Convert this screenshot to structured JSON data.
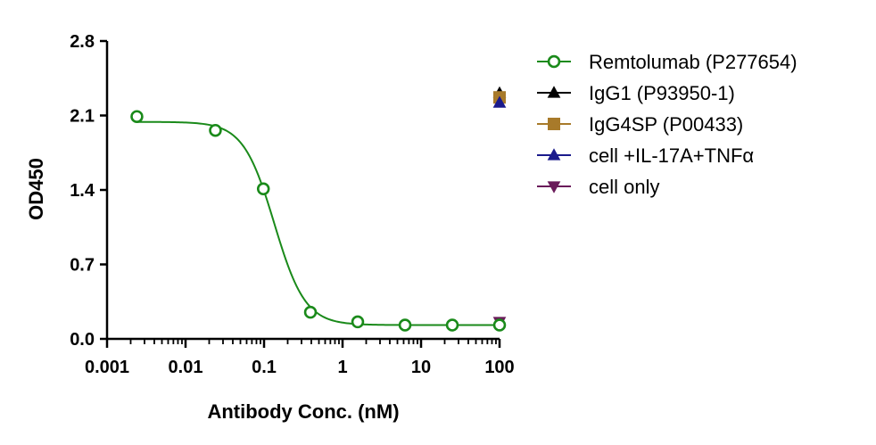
{
  "chart_data": {
    "type": "scatter",
    "title": "",
    "xlabel": "Antibody Conc. (nM)",
    "ylabel": "OD450",
    "x_scale": "log",
    "xlim": [
      0.001,
      100
    ],
    "ylim": [
      0,
      2.8
    ],
    "x_ticks": [
      {
        "value": 0.001,
        "label": "0.001"
      },
      {
        "value": 0.01,
        "label": "0.01"
      },
      {
        "value": 0.1,
        "label": "0.1"
      },
      {
        "value": 1,
        "label": "1"
      },
      {
        "value": 10,
        "label": "10"
      },
      {
        "value": 100,
        "label": "100"
      }
    ],
    "y_ticks": [
      {
        "value": 0,
        "label": "0.0"
      },
      {
        "value": 0.7,
        "label": "0.7"
      },
      {
        "value": 1.4,
        "label": "1.4"
      },
      {
        "value": 2.1,
        "label": "2.1"
      },
      {
        "value": 2.8,
        "label": "2.8"
      }
    ],
    "legend_position": "right",
    "series": [
      {
        "name": "Remtolumab (P277654)",
        "marker": "open-circle",
        "color": "#1a8a1a",
        "x": [
          0.0024,
          0.024,
          0.098,
          0.39,
          1.56,
          6.25,
          25,
          100
        ],
        "y": [
          2.09,
          1.96,
          1.41,
          0.25,
          0.16,
          0.13,
          0.13,
          0.13
        ],
        "fit": {
          "model": "4PL",
          "top": 2.04,
          "bottom": 0.13,
          "ec50": 0.135,
          "hill": 2.2
        }
      },
      {
        "name": "IgG1 (P93950-1)",
        "marker": "triangle-up",
        "color": "#000000",
        "x": [
          100
        ],
        "y": [
          2.31
        ]
      },
      {
        "name": "IgG4SP (P00433)",
        "marker": "square",
        "color": "#a87a2a",
        "x": [
          100
        ],
        "y": [
          2.27
        ]
      },
      {
        "name": "cell +IL-17A+TNFα",
        "marker": "triangle-up",
        "color": "#1a1a8c",
        "x": [
          100
        ],
        "y": [
          2.22
        ]
      },
      {
        "name": "cell only",
        "marker": "triangle-down",
        "color": "#6a1a5a",
        "x": [
          100
        ],
        "y": [
          0.16
        ]
      }
    ]
  }
}
